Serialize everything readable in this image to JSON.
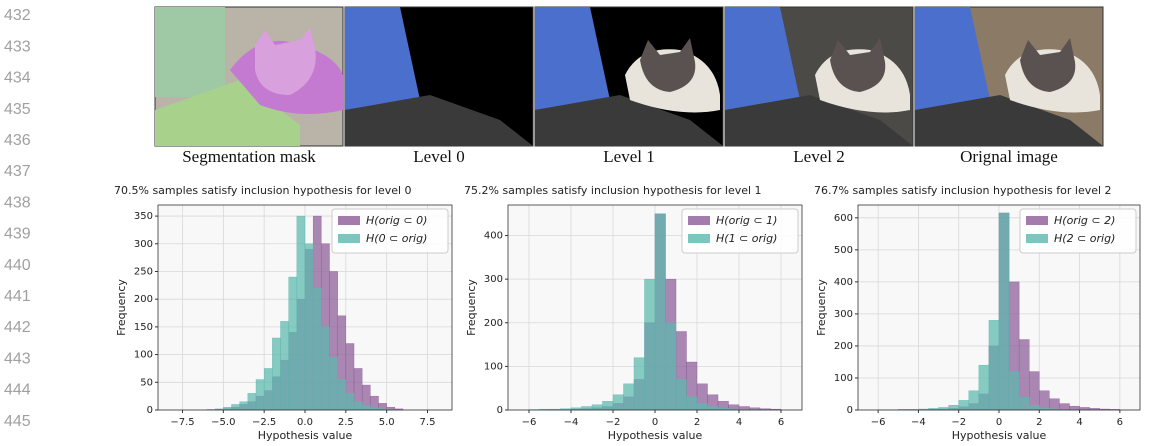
{
  "line_numbers": [
    "432",
    "433",
    "434",
    "435",
    "436",
    "437",
    "438",
    "439",
    "440",
    "441",
    "442",
    "443",
    "444",
    "445"
  ],
  "images": [
    {
      "caption": "Segmentation mask"
    },
    {
      "caption": "Level 0"
    },
    {
      "caption": "Level 1"
    },
    {
      "caption": "Level 2"
    },
    {
      "caption": "Orignal image"
    }
  ],
  "chart_data": [
    {
      "type": "histogram",
      "title": "70.5% samples satisfy inclusion hypothesis for level 0",
      "xlabel": "Hypothesis value",
      "ylabel": "Frequency",
      "bins": [
        -6,
        -5.5,
        -5,
        -4.5,
        -4,
        -3.5,
        -3,
        -2.5,
        -2,
        -1.5,
        -1,
        -0.5,
        0,
        0.5,
        1,
        1.5,
        2,
        2.5,
        3,
        3.5,
        4,
        4.5,
        5,
        5.5,
        6
      ],
      "series": [
        {
          "name": "H(orig ⊂ 0)",
          "color": "#8c5b98",
          "values": [
            0,
            1,
            2,
            5,
            10,
            15,
            25,
            35,
            60,
            90,
            140,
            200,
            290,
            350,
            300,
            250,
            170,
            120,
            75,
            45,
            25,
            12,
            5,
            2
          ]
        },
        {
          "name": "H(0 ⊂ orig)",
          "color": "#5cb8ad",
          "values": [
            1,
            2,
            5,
            10,
            15,
            30,
            55,
            75,
            130,
            160,
            240,
            350,
            300,
            220,
            150,
            95,
            55,
            30,
            15,
            8,
            4,
            2,
            1,
            0
          ]
        }
      ],
      "xlim": [
        -9,
        9
      ],
      "ylim": [
        0,
        370
      ],
      "xticks": [
        {
          "value": -7.5,
          "label": "−7.5"
        },
        {
          "value": -5,
          "label": "−5.0"
        },
        {
          "value": -2.5,
          "label": "−2.5"
        },
        {
          "value": 0,
          "label": "0.0"
        },
        2.5,
        {
          "value": 5,
          "label": "5.0"
        },
        7.5
      ],
      "yticks": [
        0,
        50,
        100,
        150,
        200,
        250,
        300,
        350
      ],
      "grid": true,
      "legend": "upper right"
    },
    {
      "type": "histogram",
      "title": "75.2% samples satisfy inclusion hypothesis for level 1",
      "xlabel": "Hypothesis value",
      "ylabel": "Frequency",
      "bins": [
        -6,
        -5.5,
        -5,
        -4.5,
        -4,
        -3.5,
        -3,
        -2.5,
        -2,
        -1.5,
        -1,
        -0.5,
        0,
        0.5,
        1,
        1.5,
        2,
        2.5,
        3,
        3.5,
        4,
        4.5,
        5,
        5.5,
        6
      ],
      "series": [
        {
          "name": "H(orig ⊂ 1)",
          "color": "#8c5b98",
          "values": [
            0,
            0,
            1,
            1,
            2,
            3,
            5,
            8,
            15,
            30,
            70,
            200,
            450,
            300,
            180,
            110,
            60,
            35,
            20,
            12,
            8,
            5,
            3,
            2
          ]
        },
        {
          "name": "H(1 ⊂ orig)",
          "color": "#5cb8ad",
          "values": [
            1,
            2,
            2,
            3,
            5,
            8,
            12,
            20,
            35,
            60,
            120,
            300,
            450,
            200,
            70,
            30,
            15,
            8,
            4,
            2,
            1,
            1,
            0,
            0
          ]
        }
      ],
      "xlim": [
        -7,
        7
      ],
      "ylim": [
        0,
        470
      ],
      "xticks": [
        {
          "value": -6,
          "label": "−6"
        },
        {
          "value": -4,
          "label": "−4"
        },
        {
          "value": -2,
          "label": "−2"
        },
        0,
        2,
        4,
        6
      ],
      "yticks": [
        0,
        100,
        200,
        300,
        400
      ],
      "grid": true,
      "legend": "upper right"
    },
    {
      "type": "histogram",
      "title": "76.7% samples satisfy inclusion hypothesis for level 2",
      "xlabel": "Hypothesis value",
      "ylabel": "Frequency",
      "bins": [
        -6,
        -5.5,
        -5,
        -4.5,
        -4,
        -3.5,
        -3,
        -2.5,
        -2,
        -1.5,
        -1,
        -0.5,
        0,
        0.5,
        1,
        1.5,
        2,
        2.5,
        3,
        3.5,
        4,
        4.5,
        5,
        5.5,
        6
      ],
      "series": [
        {
          "name": "H(orig ⊂ 2)",
          "color": "#8c5b98",
          "values": [
            0,
            0,
            0,
            1,
            1,
            2,
            3,
            5,
            10,
            20,
            50,
            200,
            615,
            400,
            220,
            120,
            60,
            35,
            20,
            12,
            8,
            5,
            3,
            2
          ]
        },
        {
          "name": "H(2 ⊂ orig)",
          "color": "#5cb8ad",
          "values": [
            1,
            1,
            2,
            2,
            3,
            5,
            8,
            15,
            30,
            60,
            140,
            280,
            615,
            120,
            40,
            15,
            6,
            3,
            1,
            1,
            0,
            0,
            0,
            0
          ]
        }
      ],
      "xlim": [
        -7,
        7
      ],
      "ylim": [
        0,
        640
      ],
      "xticks": [
        {
          "value": -6,
          "label": "−6"
        },
        {
          "value": -4,
          "label": "−4"
        },
        {
          "value": -2,
          "label": "−2"
        },
        0,
        2,
        4,
        6
      ],
      "yticks": [
        0,
        100,
        200,
        300,
        400,
        500,
        600
      ],
      "grid": true,
      "legend": "upper right"
    }
  ]
}
